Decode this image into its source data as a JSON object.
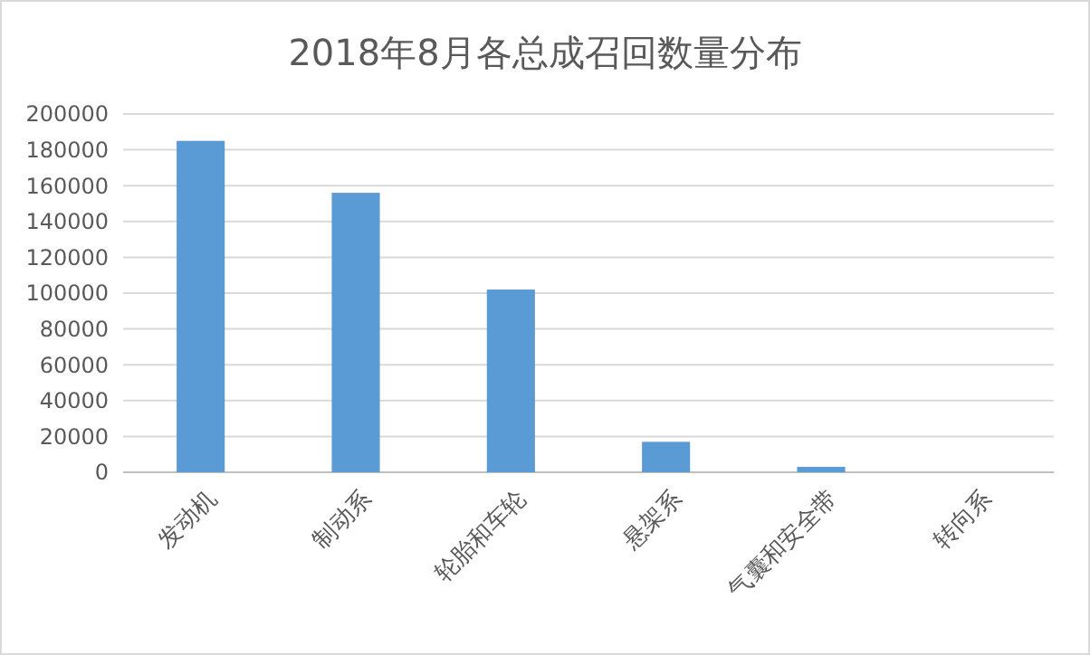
{
  "chart_data": {
    "type": "bar",
    "title": "2018年8月各总成召回数量分布",
    "categories": [
      "发动机",
      "制动系",
      "轮胎和车轮",
      "悬架系",
      "气囊和安全带",
      "转向系"
    ],
    "values": [
      185000,
      156000,
      102000,
      17000,
      3000,
      0
    ],
    "color": "#5b9bd5",
    "ylim": [
      0,
      200000
    ],
    "yticks": [
      0,
      20000,
      40000,
      60000,
      80000,
      100000,
      120000,
      140000,
      160000,
      180000,
      200000
    ],
    "grid": "y"
  }
}
